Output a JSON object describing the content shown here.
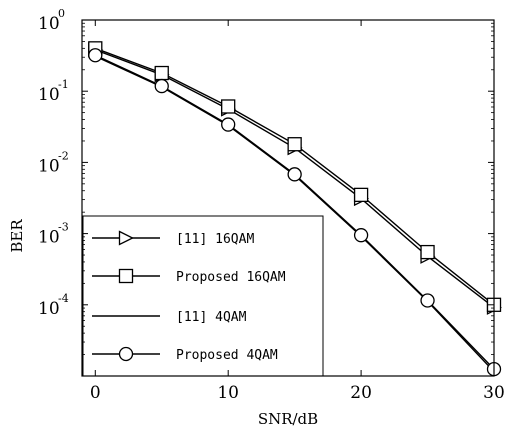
{
  "chart_data": {
    "type": "line",
    "title": "",
    "xlabel": "SNR/dB",
    "ylabel": "BER",
    "y_scale": "log",
    "xlim": [
      -1,
      30
    ],
    "ylim": [
      1e-05,
      1
    ],
    "grid": false,
    "legend_position": "bottom-left",
    "x_ticks": [
      {
        "value": 0,
        "label": "0"
      },
      {
        "value": 10,
        "label": "10"
      },
      {
        "value": 20,
        "label": "20"
      },
      {
        "value": 30,
        "label": "30"
      }
    ],
    "y_ticks": [
      {
        "value": 1,
        "base": "10",
        "exp": "0"
      },
      {
        "value": 0.1,
        "base": "10",
        "exp": "-1"
      },
      {
        "value": 0.01,
        "base": "10",
        "exp": "-2"
      },
      {
        "value": 0.001,
        "base": "10",
        "exp": "-3"
      },
      {
        "value": 0.0001,
        "base": "10",
        "exp": "-4"
      }
    ],
    "x": [
      0,
      5,
      10,
      15,
      20,
      25,
      30
    ],
    "series": [
      {
        "name": "[11] 16QAM",
        "marker": "triangle-right",
        "values": [
          0.38,
          0.17,
          0.056,
          0.016,
          0.0031,
          0.00048,
          9.2e-05
        ]
      },
      {
        "name": "Proposed 16QAM",
        "marker": "square",
        "values": [
          0.4,
          0.18,
          0.061,
          0.018,
          0.0035,
          0.00055,
          0.0001
        ]
      },
      {
        "name": "[11] 4QAM",
        "marker": "none",
        "values": [
          0.31,
          0.115,
          0.033,
          0.0066,
          0.00092,
          0.000112,
          1.15e-05
        ]
      },
      {
        "name": "Proposed 4QAM",
        "marker": "circle",
        "values": [
          0.32,
          0.118,
          0.034,
          0.0068,
          0.00095,
          0.000115,
          1.25e-05
        ]
      }
    ]
  }
}
